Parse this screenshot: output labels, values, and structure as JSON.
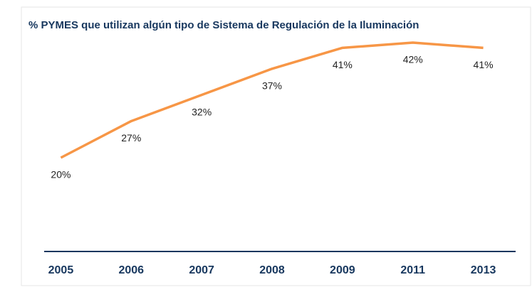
{
  "chart_data": {
    "type": "line",
    "title": "% PYMES que utilizan algún tipo de Sistema de Regulación de la Iluminación",
    "categories": [
      "2005",
      "2006",
      "2007",
      "2008",
      "2009",
      "2011",
      "2013"
    ],
    "series": [
      {
        "color": "#f79646",
        "values": [
          20,
          27,
          32,
          37,
          41,
          42,
          41
        ],
        "value_labels": [
          "20%",
          "27%",
          "32%",
          "37%",
          "41%",
          "42%",
          "41%"
        ]
      }
    ]
  }
}
